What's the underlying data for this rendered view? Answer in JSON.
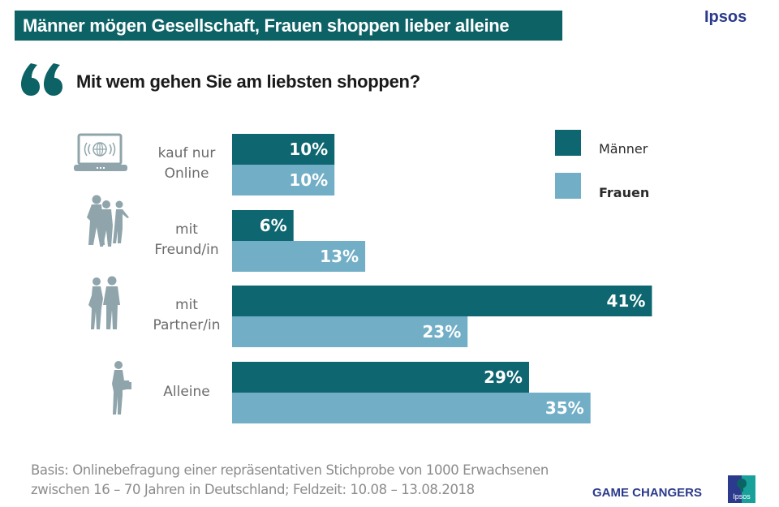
{
  "header": {
    "title": "Männer mögen Gesellschaft, Frauen shoppen lieber alleine",
    "brand": "Ipsos",
    "question": "Mit wem gehen Sie am liebsten shoppen?"
  },
  "colors": {
    "maenner": "#0d6670",
    "frauen": "#72afc7",
    "title_bg": "#0d6266",
    "icon": "#8fa5ab",
    "brand": "#2b3a8c"
  },
  "categories_display": [
    {
      "line1": "kauf nur",
      "line2": "Online",
      "icon": "laptop-globe-icon"
    },
    {
      "line1": "mit",
      "line2": "Freund/in",
      "icon": "friends-walking-icon"
    },
    {
      "line1": "mit",
      "line2": "Partner/in",
      "icon": "couple-icon"
    },
    {
      "line1": "Alleine",
      "line2": "",
      "icon": "woman-with-bag-icon"
    }
  ],
  "legend": {
    "maenner": "Männer",
    "frauen": "Frauen"
  },
  "footnote": {
    "line1": "Basis: Onlinebefragung einer repräsentativen Stichprobe von 1000 Erwachsenen",
    "line2": "zwischen 16 – 70 Jahren in Deutschland; Feldzeit: 10.08 – 13.08.2018"
  },
  "footer": {
    "tagline": "GAME CHANGERS",
    "logo_text": "Ipsos"
  },
  "chart_data": {
    "type": "bar",
    "orientation": "horizontal",
    "title": "Mit wem gehen Sie am liebsten shoppen?",
    "categories": [
      "kauf nur Online",
      "mit Freund/in",
      "mit Partner/in",
      "Alleine"
    ],
    "series": [
      {
        "name": "Männer",
        "values": [
          10,
          6,
          41,
          29
        ],
        "labels": [
          "10%",
          "6%",
          "41%",
          "29%"
        ]
      },
      {
        "name": "Frauen",
        "values": [
          10,
          13,
          23,
          35
        ],
        "labels": [
          "10%",
          "13%",
          "23%",
          "35%"
        ]
      }
    ],
    "unit": "%",
    "xlim": [
      0,
      45
    ],
    "grid": false,
    "legend_position": "top-right"
  }
}
